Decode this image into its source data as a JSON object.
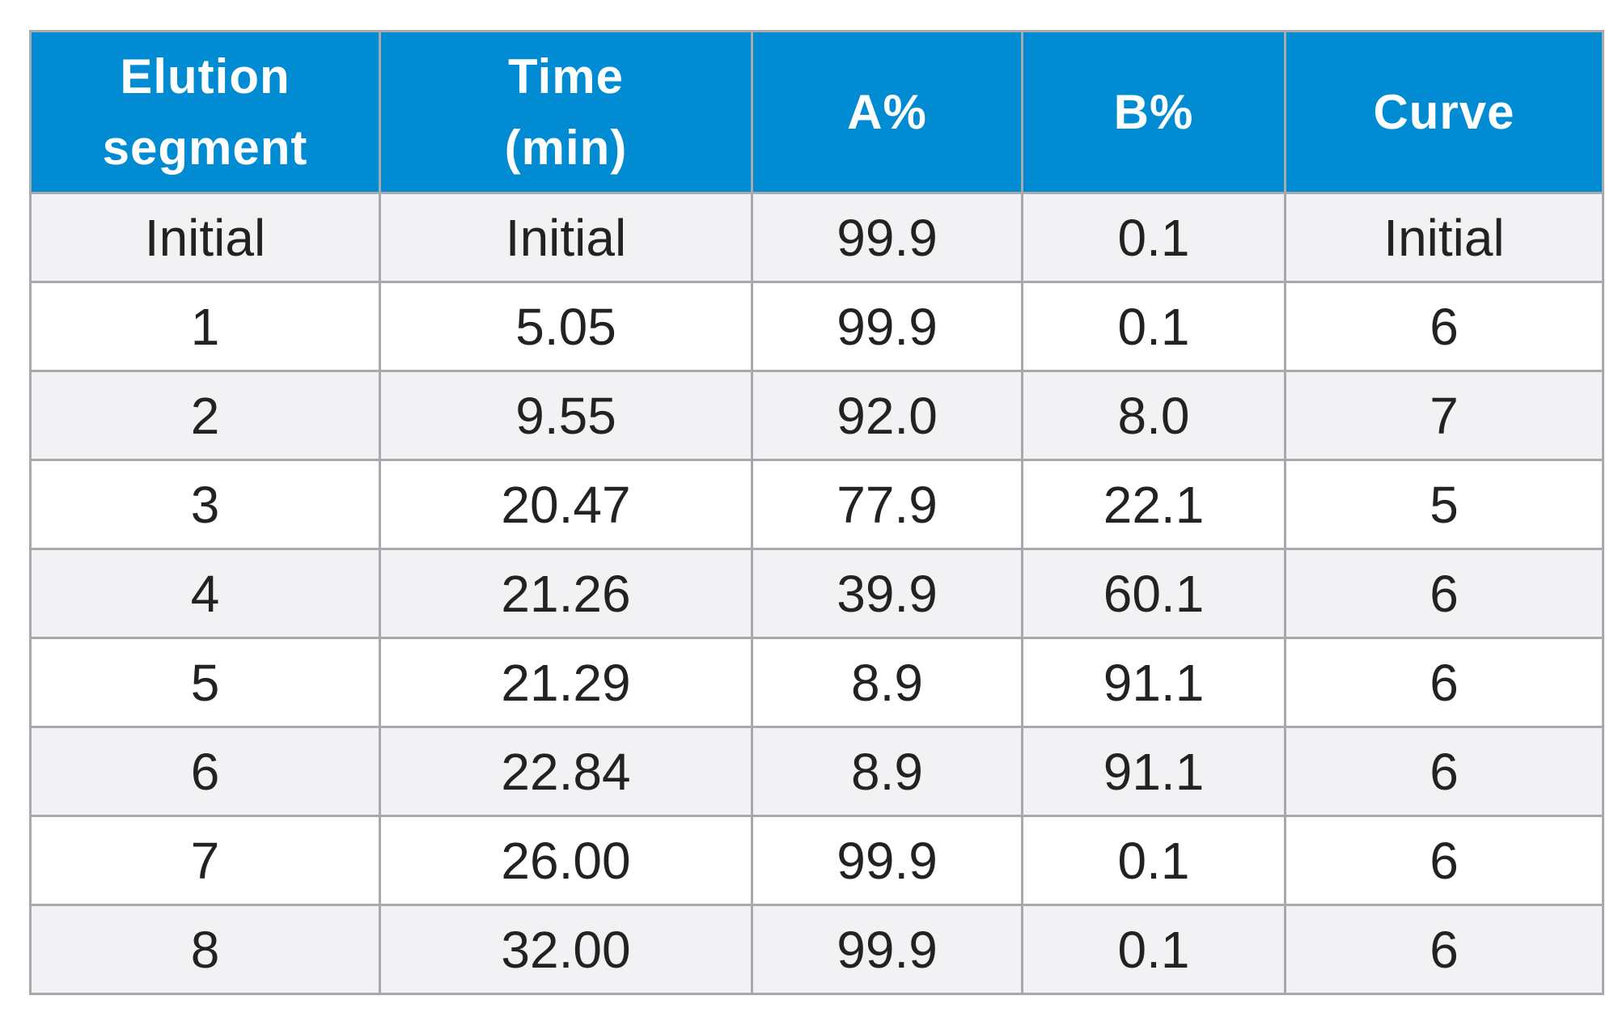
{
  "table": {
    "headers": [
      {
        "lines": [
          "Elution",
          "segment"
        ]
      },
      {
        "lines": [
          "Time",
          "(min)"
        ]
      },
      {
        "lines": [
          "A%"
        ]
      },
      {
        "lines": [
          "B%"
        ]
      },
      {
        "lines": [
          "Curve"
        ]
      }
    ],
    "rows": [
      [
        "Initial",
        "Initial",
        "99.9",
        "0.1",
        "Initial"
      ],
      [
        "1",
        "5.05",
        "99.9",
        "0.1",
        "6"
      ],
      [
        "2",
        "9.55",
        "92.0",
        "8.0",
        "7"
      ],
      [
        "3",
        "20.47",
        "77.9",
        "22.1",
        "5"
      ],
      [
        "4",
        "21.26",
        "39.9",
        "60.1",
        "6"
      ],
      [
        "5",
        "21.29",
        "8.9",
        "91.1",
        "6"
      ],
      [
        "6",
        "22.84",
        "8.9",
        "91.1",
        "6"
      ],
      [
        "7",
        "26.00",
        "99.9",
        "0.1",
        "6"
      ],
      [
        "8",
        "32.00",
        "99.9",
        "0.1",
        "6"
      ]
    ]
  },
  "colors": {
    "header_bg": "#008bd2",
    "header_text": "#ffffff",
    "row_alt_bg": "#f2f2f4",
    "row_bg": "#ffffff",
    "border": "#a7a9ac",
    "cell_text": "#222222"
  }
}
